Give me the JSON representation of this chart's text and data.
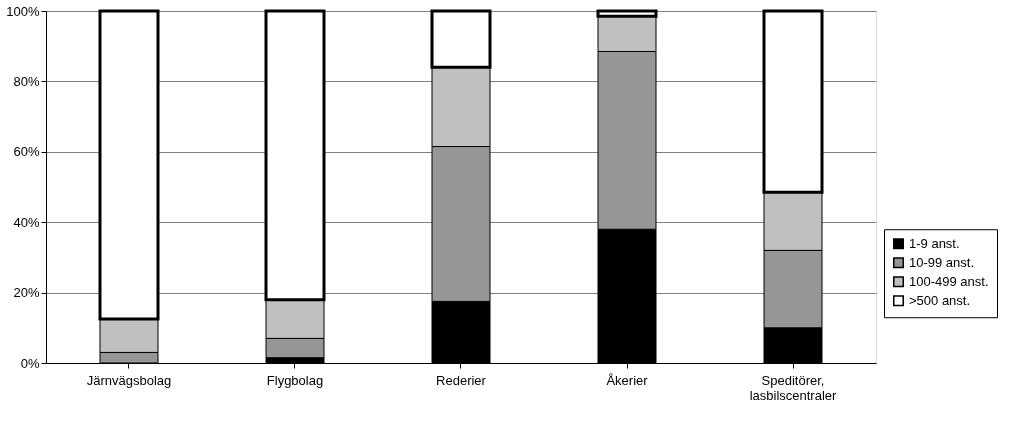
{
  "chart_data": {
    "type": "bar",
    "stacked": true,
    "categories": [
      "Järnvägsbolag",
      "Flygbolag",
      "Rederier",
      "Åkerier",
      "Speditörer, lasbilscentraler"
    ],
    "series": [
      {
        "name": "1-9 anst.",
        "color": "#000000",
        "values": [
          0,
          1.5,
          17.5,
          38,
          10
        ]
      },
      {
        "name": "10-99 anst.",
        "color": "#969696",
        "values": [
          3,
          5.5,
          44,
          50.5,
          22
        ]
      },
      {
        "name": "100-499 anst.",
        "color": "#c0c0c0",
        "values": [
          9.5,
          11,
          22.5,
          10,
          16.5
        ]
      },
      {
        "name": ">500 anst.",
        "color": "#ffffff",
        "values": [
          87.5,
          82,
          16,
          1.5,
          51.5
        ]
      }
    ],
    "ylim": [
      0,
      100
    ],
    "yticks": [
      {
        "value": 0,
        "label": "0%"
      },
      {
        "value": 20,
        "label": "20%"
      },
      {
        "value": 40,
        "label": "40%"
      },
      {
        "value": 60,
        "label": "60%"
      },
      {
        "value": 80,
        "label": "80%"
      },
      {
        "value": 100,
        "label": "100%"
      }
    ],
    "grid": "y",
    "legend": "right"
  }
}
